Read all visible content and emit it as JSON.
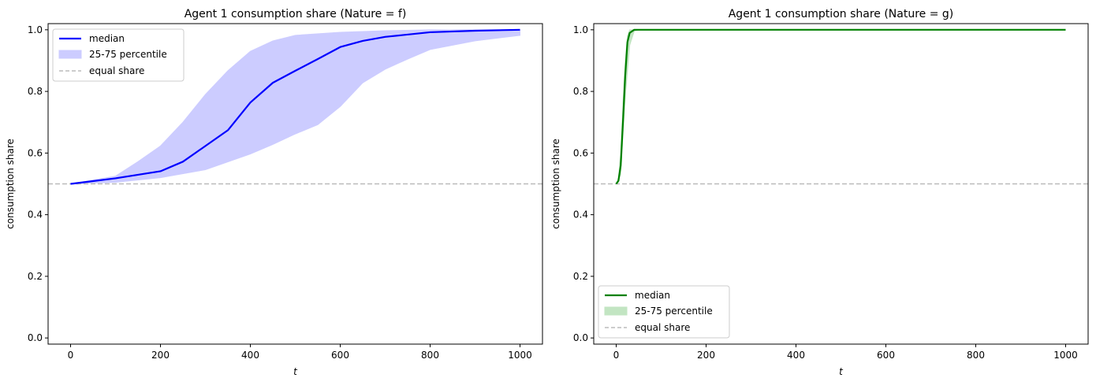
{
  "chart_data": [
    {
      "type": "line",
      "title": "Agent 1 consumption share (Nature = f)",
      "xlabel": "t",
      "ylabel": "consumption share",
      "xlim": [
        -50,
        1050
      ],
      "ylim": [
        -0.02,
        1.02
      ],
      "xticks": [
        0,
        200,
        400,
        600,
        800,
        1000
      ],
      "yticks": [
        0.0,
        0.2,
        0.4,
        0.6,
        0.8,
        1.0
      ],
      "legend_placement": "upper-left",
      "color": "#0000ff",
      "band_color": "#ccccff",
      "series": [
        {
          "name": "median",
          "x": [
            0,
            100,
            200,
            250,
            300,
            350,
            400,
            450,
            500,
            550,
            600,
            650,
            700,
            800,
            900,
            1000
          ],
          "y": [
            0.5,
            0.518,
            0.541,
            0.572,
            0.623,
            0.674,
            0.764,
            0.828,
            0.867,
            0.905,
            0.944,
            0.964,
            0.977,
            0.992,
            0.997,
            1.0
          ]
        }
      ],
      "band": {
        "name": "25-75 percentile",
        "x_upper": [
          0,
          100,
          150,
          200,
          250,
          300,
          350,
          400,
          450,
          500,
          600,
          700,
          800,
          1000
        ],
        "upper": [
          0.5,
          0.525,
          0.572,
          0.623,
          0.7,
          0.79,
          0.867,
          0.93,
          0.964,
          0.982,
          0.992,
          0.997,
          1.0,
          1.0
        ],
        "x_lower": [
          0,
          100,
          200,
          300,
          400,
          450,
          500,
          550,
          600,
          650,
          700,
          750,
          800,
          900,
          1000
        ],
        "lower": [
          0.5,
          0.505,
          0.52,
          0.546,
          0.597,
          0.628,
          0.662,
          0.692,
          0.751,
          0.828,
          0.872,
          0.905,
          0.936,
          0.964,
          0.982
        ]
      },
      "reference": {
        "name": "equal share",
        "y": 0.5,
        "color": "#bbbbbb"
      }
    },
    {
      "type": "line",
      "title": "Agent 1 consumption share (Nature = g)",
      "xlabel": "t",
      "ylabel": "consumption share",
      "xlim": [
        -50,
        1050
      ],
      "ylim": [
        -0.02,
        1.02
      ],
      "xticks": [
        0,
        200,
        400,
        600,
        800,
        1000
      ],
      "yticks": [
        0.0,
        0.2,
        0.4,
        0.6,
        0.8,
        1.0
      ],
      "legend_placement": "lower-left",
      "color": "#008000",
      "band_color": "#c2e5c2",
      "series": [
        {
          "name": "median",
          "x": [
            0,
            5,
            10,
            15,
            20,
            25,
            30,
            40,
            1000
          ],
          "y": [
            0.5,
            0.51,
            0.56,
            0.7,
            0.85,
            0.96,
            0.99,
            1.0,
            1.0
          ]
        }
      ],
      "band": {
        "name": "25-75 percentile",
        "x_upper": [
          0,
          5,
          10,
          15,
          20,
          25,
          30,
          1000
        ],
        "upper": [
          0.5,
          0.52,
          0.6,
          0.76,
          0.9,
          0.98,
          1.0,
          1.0
        ],
        "x_lower": [
          0,
          10,
          20,
          30,
          40,
          50,
          1000
        ],
        "lower": [
          0.5,
          0.53,
          0.78,
          0.95,
          0.995,
          1.0,
          1.0
        ]
      },
      "reference": {
        "name": "equal share",
        "y": 0.5,
        "color": "#bbbbbb"
      }
    }
  ]
}
